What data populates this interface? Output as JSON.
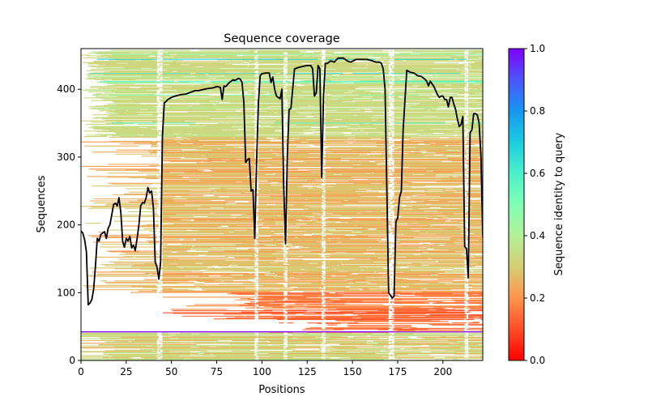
{
  "chart_data": {
    "type": "heatmap",
    "title": "Sequence coverage",
    "xlabel": "Positions",
    "ylabel": "Sequences",
    "xlim": [
      0,
      222
    ],
    "ylim": [
      0,
      460
    ],
    "xticks": [
      0,
      25,
      50,
      75,
      100,
      125,
      150,
      175,
      200
    ],
    "yticks": [
      0,
      100,
      200,
      300,
      400
    ],
    "colorbar": {
      "label": "Sequence identity to query",
      "colormap": "rainbow_r",
      "range": [
        0.0,
        1.0
      ],
      "ticks": [
        "0.0",
        "0.2",
        "0.4",
        "0.6",
        "0.8",
        "1.0"
      ]
    },
    "heatmap_description": {
      "query_rows_identity": 1.0,
      "query_rows_at_sequences": [
        42,
        458
      ],
      "bands": [
        {
          "sequences": [
            0,
            41
          ],
          "identity_approx": 0.33,
          "note": "olive/orange rows, sparse before position 45"
        },
        {
          "sequences": [
            43,
            100
          ],
          "identity_approx": 0.15,
          "note": "red-orange rows mostly right of position 45"
        },
        {
          "sequences": [
            100,
            330
          ],
          "identity_approx": 0.25,
          "note": "orange rows"
        },
        {
          "sequences": [
            330,
            457
          ],
          "identity_approx": 0.35,
          "note": "olive rows with scattered cyan/green high-identity rows"
        }
      ],
      "gap_columns": [
        42,
        43,
        44,
        96,
        97,
        112,
        113,
        133,
        134,
        170,
        171,
        172,
        212,
        213
      ]
    },
    "coverage_line": {
      "name": "coverage",
      "color": "#000000",
      "x": [
        0,
        1,
        2,
        3,
        4,
        5,
        6,
        7,
        8,
        9,
        10,
        11,
        12,
        13,
        14,
        15,
        16,
        17,
        18,
        19,
        20,
        21,
        22,
        23,
        24,
        25,
        26,
        27,
        28,
        29,
        30,
        31,
        32,
        33,
        34,
        35,
        36,
        37,
        38,
        39,
        40,
        41,
        42,
        43,
        44,
        45,
        46,
        47,
        48,
        50,
        52,
        55,
        58,
        60,
        63,
        65,
        68,
        70,
        73,
        75,
        77,
        78,
        79,
        80,
        82,
        84,
        85,
        87,
        88,
        89,
        90,
        91,
        92,
        93,
        94,
        95,
        96,
        97,
        98,
        99,
        100,
        102,
        104,
        105,
        106,
        107,
        108,
        109,
        110,
        111,
        112,
        113,
        114,
        115,
        116,
        118,
        120,
        123,
        125,
        127,
        128,
        129,
        130,
        131,
        132,
        133,
        134,
        135,
        136,
        138,
        140,
        142,
        145,
        147,
        149,
        152,
        155,
        158,
        161,
        163,
        165,
        166,
        167,
        168,
        169,
        170,
        171,
        172,
        173,
        174,
        175,
        176,
        177,
        178,
        180,
        182,
        184,
        186,
        188,
        190,
        191,
        192,
        193,
        195,
        197,
        198,
        199,
        200,
        201,
        202,
        203,
        204,
        205,
        206,
        207,
        208,
        209,
        210,
        211,
        212,
        213,
        214,
        215,
        216,
        217,
        218,
        219,
        220,
        221,
        222
      ],
      "y": [
        191,
        188,
        178,
        160,
        82,
        85,
        90,
        105,
        140,
        180,
        176,
        186,
        188,
        190,
        180,
        195,
        200,
        215,
        230,
        232,
        228,
        240,
        218,
        176,
        167,
        180,
        176,
        183,
        166,
        170,
        162,
        180,
        200,
        228,
        233,
        232,
        240,
        255,
        247,
        250,
        225,
        145,
        138,
        120,
        145,
        330,
        380,
        382,
        385,
        388,
        390,
        392,
        393,
        395,
        398,
        398,
        400,
        401,
        402,
        404,
        403,
        385,
        405,
        404,
        410,
        414,
        413,
        416,
        415,
        410,
        380,
        292,
        296,
        298,
        250,
        252,
        180,
        290,
        380,
        420,
        423,
        424,
        424,
        410,
        418,
        400,
        390,
        388,
        386,
        400,
        260,
        172,
        300,
        370,
        372,
        430,
        432,
        434,
        435,
        435,
        430,
        390,
        395,
        435,
        430,
        270,
        390,
        438,
        438,
        442,
        440,
        446,
        446,
        442,
        440,
        444,
        444,
        444,
        442,
        440,
        440,
        438,
        430,
        400,
        250,
        100,
        96,
        92,
        95,
        205,
        210,
        240,
        250,
        340,
        428,
        425,
        424,
        420,
        419,
        415,
        412,
        405,
        412,
        404,
        392,
        388,
        390,
        390,
        385,
        385,
        374,
        388,
        388,
        378,
        370,
        356,
        345,
        348,
        360,
        168,
        165,
        122,
        336,
        340,
        364,
        364,
        362,
        350,
        300,
        182
      ]
    }
  }
}
